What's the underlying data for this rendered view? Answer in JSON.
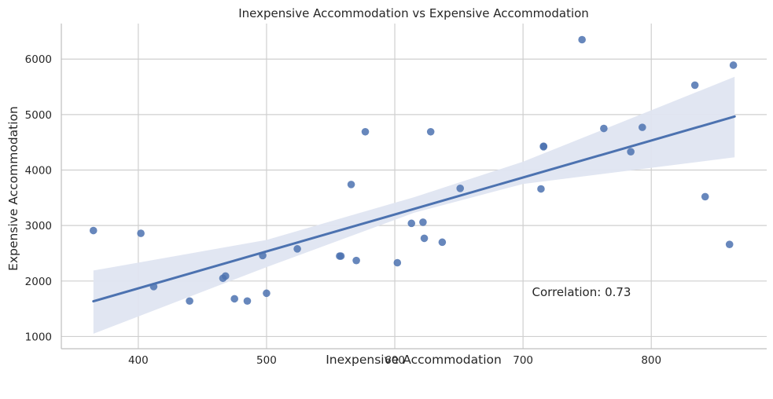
{
  "chart_data": {
    "type": "scatter",
    "title": "Inexpensive Accommodation vs Expensive Accommodation",
    "xlabel": "Inexpensive Accommodation",
    "ylabel": "Expensive Accommodation",
    "xlim": [
      340,
      890
    ],
    "ylim": [
      780,
      6640
    ],
    "xticks": [
      400,
      500,
      600,
      700,
      800
    ],
    "yticks": [
      1000,
      2000,
      3000,
      4000,
      5000,
      6000
    ],
    "grid": true,
    "annotation": "Correlation: 0.73",
    "annotation_position": {
      "x": 707,
      "y": 1800
    },
    "regression": {
      "x_start": 365,
      "y_start": 1635,
      "x_end": 865,
      "y_end": 4965,
      "ci_lower": [
        [
          365,
          1050
        ],
        [
          500,
          2250
        ],
        [
          615,
          3230
        ],
        [
          700,
          3750
        ],
        [
          865,
          4230
        ]
      ],
      "ci_upper": [
        [
          865,
          5680
        ],
        [
          700,
          4150
        ],
        [
          615,
          3510
        ],
        [
          500,
          2740
        ],
        [
          365,
          2190
        ]
      ]
    },
    "colors": {
      "points": "#4c72b0",
      "line": "#4c72b0",
      "band": "#dfe5f1",
      "grid": "#cfcfcf",
      "axis": "#bfbfbf"
    },
    "series": [
      {
        "points": [
          {
            "x": 365,
            "y": 2910
          },
          {
            "x": 402,
            "y": 2860
          },
          {
            "x": 412,
            "y": 1900
          },
          {
            "x": 440,
            "y": 1640
          },
          {
            "x": 466,
            "y": 2050
          },
          {
            "x": 468,
            "y": 2090
          },
          {
            "x": 475,
            "y": 1680
          },
          {
            "x": 485,
            "y": 1640
          },
          {
            "x": 497,
            "y": 2460
          },
          {
            "x": 500,
            "y": 1780
          },
          {
            "x": 524,
            "y": 2580
          },
          {
            "x": 557,
            "y": 2450
          },
          {
            "x": 558,
            "y": 2450
          },
          {
            "x": 566,
            "y": 3740
          },
          {
            "x": 570,
            "y": 2370
          },
          {
            "x": 577,
            "y": 4690
          },
          {
            "x": 602,
            "y": 2330
          },
          {
            "x": 613,
            "y": 3040
          },
          {
            "x": 622,
            "y": 3060
          },
          {
            "x": 623,
            "y": 2770
          },
          {
            "x": 628,
            "y": 4690
          },
          {
            "x": 637,
            "y": 2700
          },
          {
            "x": 651,
            "y": 3670
          },
          {
            "x": 714,
            "y": 3660
          },
          {
            "x": 716,
            "y": 4420
          },
          {
            "x": 716,
            "y": 4430
          },
          {
            "x": 746,
            "y": 6350
          },
          {
            "x": 763,
            "y": 4750
          },
          {
            "x": 784,
            "y": 4330
          },
          {
            "x": 793,
            "y": 4770
          },
          {
            "x": 834,
            "y": 5530
          },
          {
            "x": 842,
            "y": 3520
          },
          {
            "x": 861,
            "y": 2660
          },
          {
            "x": 864,
            "y": 5890
          }
        ]
      }
    ]
  }
}
